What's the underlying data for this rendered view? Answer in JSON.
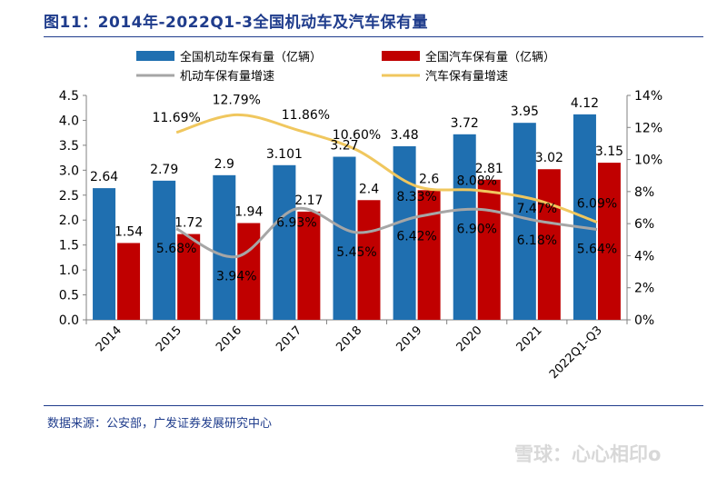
{
  "header": {
    "title": "图11：2014年-2022Q1-3全国机动车及汽车保有量"
  },
  "footer": {
    "source": "数据来源：公安部，广发证券发展研究中心"
  },
  "watermark": {
    "text": "雪球：心心相印o"
  },
  "chart_data": {
    "type": "bar",
    "categories": [
      "2014",
      "2015",
      "2016",
      "2017",
      "2018",
      "2019",
      "2020",
      "2021",
      "2022Q1-Q3"
    ],
    "series": [
      {
        "name": "全国机动车保有量（亿辆）",
        "kind": "bar",
        "axis": "left",
        "color": "#1f6fb0",
        "values": [
          2.64,
          2.79,
          2.9,
          3.101,
          3.27,
          3.48,
          3.72,
          3.95,
          4.12
        ],
        "labels": [
          "2.64",
          "2.79",
          "2.9",
          "3.101",
          "3.27",
          "3.48",
          "3.72",
          "3.95",
          "4.12"
        ]
      },
      {
        "name": "全国汽车保有量（亿辆）",
        "kind": "bar",
        "axis": "left",
        "color": "#c00000",
        "values": [
          1.54,
          1.72,
          1.94,
          2.17,
          2.4,
          2.6,
          2.81,
          3.02,
          3.15
        ],
        "labels": [
          "1.54",
          "1.72",
          "1.94",
          "2.17",
          "2.4",
          "2.6",
          "2.81",
          "3.02",
          "3.15"
        ]
      },
      {
        "name": "机动车保有量增速",
        "kind": "line",
        "axis": "right",
        "color": "#a6a6a6",
        "values": [
          null,
          5.68,
          3.94,
          6.93,
          5.45,
          6.42,
          6.9,
          6.18,
          5.64
        ],
        "labels": [
          "",
          "5.68%",
          "3.94%",
          "6.93%",
          "5.45%",
          "6.42%",
          "6.90%",
          "6.18%",
          "5.64%"
        ]
      },
      {
        "name": "汽车保有量增速",
        "kind": "line",
        "axis": "right",
        "color": "#f0c75e",
        "values": [
          null,
          11.69,
          12.79,
          11.86,
          10.6,
          8.33,
          8.08,
          7.47,
          6.09
        ],
        "labels": [
          "",
          "11.69%",
          "12.79%",
          "11.86%",
          "10.60%",
          "8.33%",
          "8.08%",
          "7.47%",
          "6.09%"
        ]
      }
    ],
    "y_left": {
      "min": 0,
      "max": 4.5,
      "ticks": [
        "0.0",
        "0.5",
        "1.0",
        "1.5",
        "2.0",
        "2.5",
        "3.0",
        "3.5",
        "4.0",
        "4.5"
      ]
    },
    "y_right": {
      "min": 0,
      "max": 14,
      "ticks": [
        "0%",
        "2%",
        "4%",
        "6%",
        "8%",
        "10%",
        "12%",
        "14%"
      ]
    },
    "legend_position": "top",
    "grid": false
  }
}
